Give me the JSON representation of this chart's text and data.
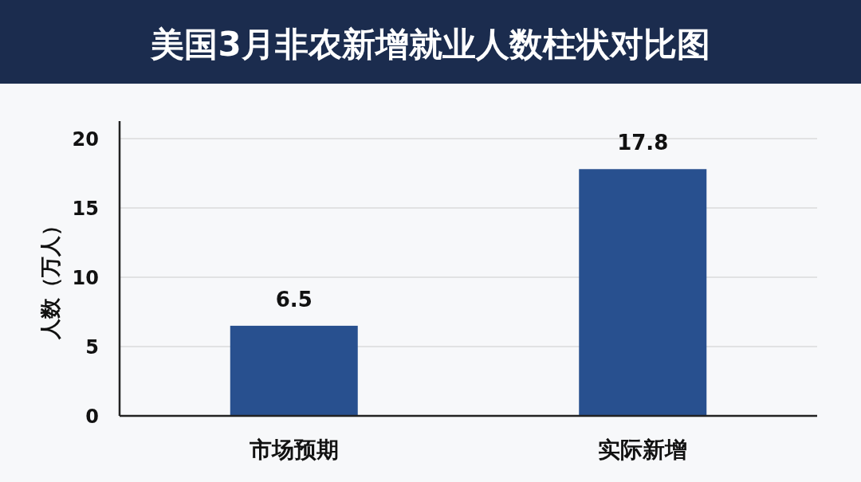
{
  "chart_data": {
    "type": "bar",
    "title": "美国3月非农新增就业人数柱状对比图",
    "ylabel": "人数（万人）",
    "categories": [
      "市场预期",
      "实际新增"
    ],
    "values": [
      6.5,
      17.8
    ],
    "color": "#28508f",
    "ylim": [
      0,
      20
    ],
    "yticks": [
      0,
      5,
      10,
      15,
      20
    ],
    "grid": "y",
    "data_labels": true
  }
}
